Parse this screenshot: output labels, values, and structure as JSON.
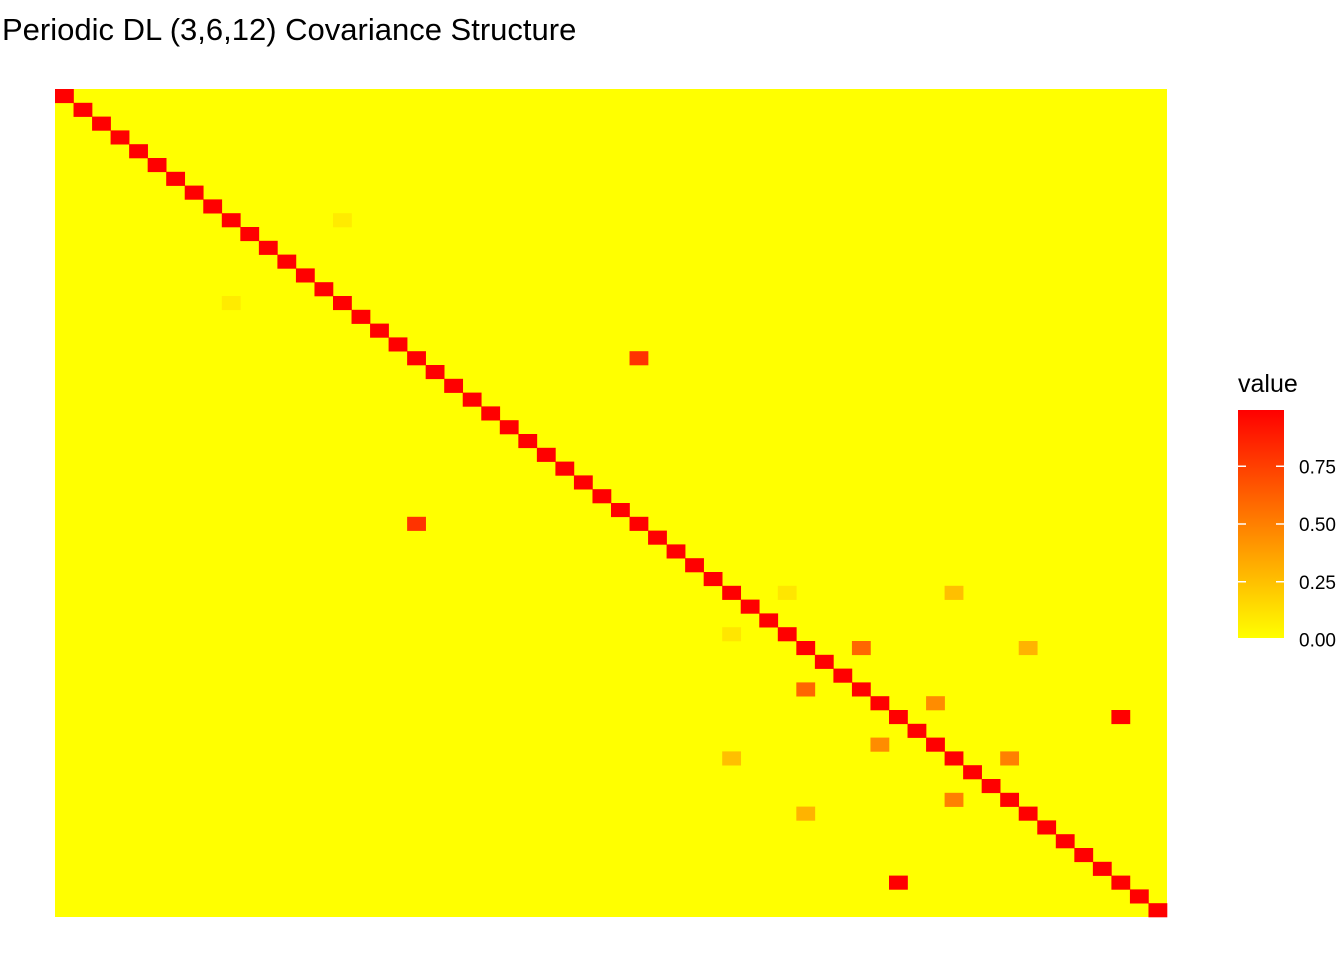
{
  "chart_data": {
    "type": "heatmap",
    "title": "Periodic DL (3,6,12) Covariance Structure",
    "n_rows": 60,
    "n_cols": 60,
    "diagonal_value": 1.0,
    "background_value": 0.0,
    "axes_visible": false,
    "grid": false,
    "legend_position": "right",
    "colorscale": {
      "low": "#FFFF00",
      "high": "#FF0000",
      "limits": [
        0,
        1
      ]
    },
    "legend": {
      "title": "value",
      "ticks": [
        {
          "value": 0.0,
          "label": "0.00"
        },
        {
          "value": 0.25,
          "label": "0.25"
        },
        {
          "value": 0.5,
          "label": "0.50"
        },
        {
          "value": 0.75,
          "label": "0.75"
        }
      ]
    },
    "off_diagonal_cells": [
      {
        "row": 9,
        "col": 15,
        "value": 0.08
      },
      {
        "row": 15,
        "col": 9,
        "value": 0.08
      },
      {
        "row": 19,
        "col": 31,
        "value": 0.8
      },
      {
        "row": 31,
        "col": 19,
        "value": 0.8
      },
      {
        "row": 36,
        "col": 39,
        "value": 0.1
      },
      {
        "row": 36,
        "col": 48,
        "value": 0.25
      },
      {
        "row": 39,
        "col": 36,
        "value": 0.1
      },
      {
        "row": 40,
        "col": 43,
        "value": 0.6
      },
      {
        "row": 40,
        "col": 52,
        "value": 0.3
      },
      {
        "row": 43,
        "col": 40,
        "value": 0.6
      },
      {
        "row": 44,
        "col": 47,
        "value": 0.45
      },
      {
        "row": 45,
        "col": 57,
        "value": 1.0
      },
      {
        "row": 48,
        "col": 36,
        "value": 0.25
      },
      {
        "row": 47,
        "col": 44,
        "value": 0.45
      },
      {
        "row": 48,
        "col": 51,
        "value": 0.5
      },
      {
        "row": 51,
        "col": 48,
        "value": 0.5
      },
      {
        "row": 52,
        "col": 40,
        "value": 0.3
      },
      {
        "row": 57,
        "col": 45,
        "value": 1.0
      }
    ]
  }
}
